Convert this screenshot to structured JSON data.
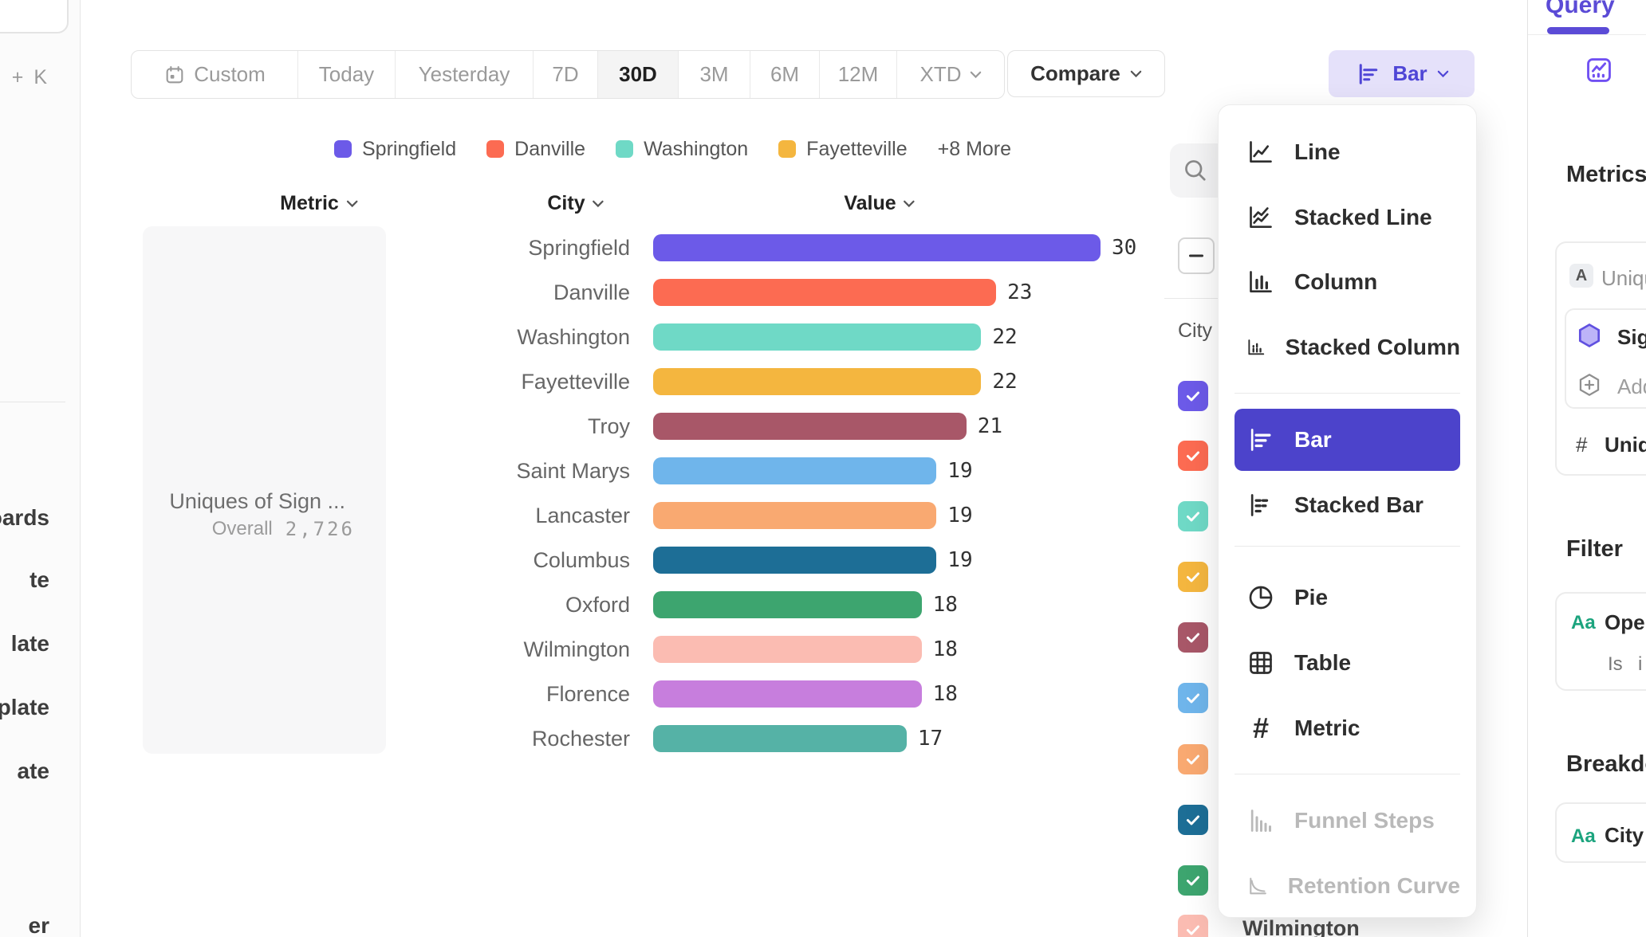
{
  "colors": {
    "accent_purple": "#5B4BD6",
    "menu_selected_bg": "#4C43CB",
    "bar_button_bg": "#E5E1FA",
    "bar_button_text": "#4F46D6",
    "aa_green": "#1CA47E"
  },
  "left_rail": {
    "shortcut": "⌘ + K",
    "items": [
      "boards",
      "te",
      "late",
      "plate",
      "ate",
      "er"
    ]
  },
  "toolbar": {
    "ranges": [
      "Custom",
      "Today",
      "Yesterday",
      "7D",
      "30D",
      "3M",
      "6M",
      "12M",
      "XTD"
    ],
    "selected_range": "30D",
    "compare_label": "Compare",
    "chart_type_label": "Bar"
  },
  "legend": {
    "items": [
      {
        "label": "Springfield",
        "color": "#6C5AE8"
      },
      {
        "label": "Danville",
        "color": "#FC6B52"
      },
      {
        "label": "Washington",
        "color": "#6FD9C6"
      },
      {
        "label": "Fayetteville",
        "color": "#F4B63F"
      },
      {
        "label": "+8 More",
        "color": ""
      }
    ]
  },
  "table_headers": {
    "metric": "Metric",
    "city": "City",
    "value": "Value"
  },
  "metric_card": {
    "title": "Uniques of Sign ...",
    "overall_label": "Overall",
    "overall_value": "2,726"
  },
  "chart_data": {
    "type": "bar",
    "orientation": "horizontal",
    "metric": "Uniques of Sign ...",
    "overall": 2726,
    "categories": [
      "Springfield",
      "Danville",
      "Washington",
      "Fayetteville",
      "Troy",
      "Saint Marys",
      "Lancaster",
      "Columbus",
      "Oxford",
      "Wilmington",
      "Florence",
      "Rochester"
    ],
    "values": [
      30,
      23,
      22,
      22,
      21,
      19,
      19,
      19,
      18,
      18,
      18,
      17
    ],
    "colors": [
      "#6C5AE8",
      "#FC6B52",
      "#6FD9C6",
      "#F4B63F",
      "#A85768",
      "#6FB5EB",
      "#F9A971",
      "#1D6E96",
      "#3DA56F",
      "#FBBCB2",
      "#C77EDD",
      "#55B2A6"
    ],
    "xlim": [
      0,
      30
    ],
    "value_labels_shown": true,
    "legend_position": "top"
  },
  "city_panel": {
    "column_label": "City",
    "bottom_partial_label": "Wilmington",
    "checkbox_colors": [
      "#6C5AE8",
      "#FC6B52",
      "#6FD9C6",
      "#F4B63F",
      "#A85768",
      "#6FB5EB",
      "#F9A971",
      "#1D6E96",
      "#3DA56F",
      "#FBBCB2"
    ]
  },
  "chart_menu": {
    "items": [
      {
        "label": "Line",
        "state": "normal"
      },
      {
        "label": "Stacked Line",
        "state": "normal"
      },
      {
        "label": "Column",
        "state": "normal"
      },
      {
        "label": "Stacked Column",
        "state": "normal"
      },
      {
        "label": "Bar",
        "state": "selected"
      },
      {
        "label": "Stacked Bar",
        "state": "normal"
      },
      {
        "label": "Pie",
        "state": "normal"
      },
      {
        "label": "Table",
        "state": "normal"
      },
      {
        "label": "Metric",
        "state": "normal"
      },
      {
        "label": "Funnel Steps",
        "state": "disabled"
      },
      {
        "label": "Retention Curve",
        "state": "disabled"
      }
    ]
  },
  "sidebar": {
    "tab_label": "Query",
    "metrics_heading": "Metrics",
    "metrics_card": {
      "badge": "A",
      "event_label": "Uniques",
      "hex_event_label": "Sign",
      "add_label": "Add",
      "count_label": "Uniques"
    },
    "filter": {
      "heading": "Filter",
      "type_badge": "Aa",
      "property_label": "Oper",
      "operator": "Is",
      "value": "i"
    },
    "breakdown": {
      "heading": "Breakdown",
      "type_badge": "Aa",
      "property_label": "City"
    }
  }
}
